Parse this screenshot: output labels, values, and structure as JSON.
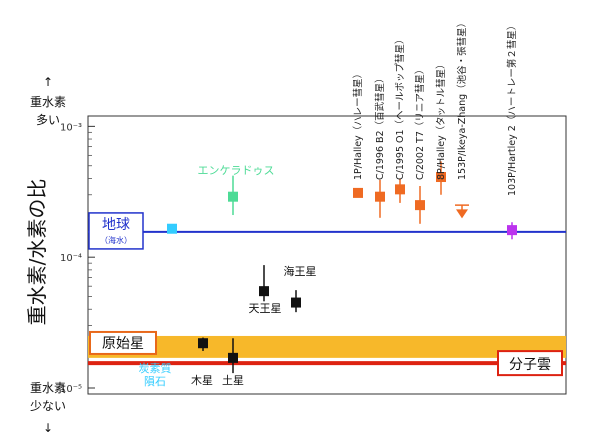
{
  "chart_data": {
    "type": "scatter",
    "title": "",
    "ylabel": "重水素/水素の比",
    "yscale": "log",
    "ylim": [
      9e-06,
      0.0012
    ],
    "yticks": [
      {
        "value": 0.001,
        "label": "10⁻³"
      },
      {
        "value": 0.0001,
        "label": "10⁻⁴"
      },
      {
        "value": 1e-05,
        "label": "10⁻⁵"
      }
    ],
    "top_annotation": {
      "arrow": "↑",
      "line1": "重水素",
      "line2": "多い"
    },
    "bottom_annotation": {
      "line1": "重水素",
      "line2": "少ない",
      "arrow": "↓"
    },
    "reference_lines": [
      {
        "name": "地球",
        "note": "（海水）",
        "value": 0.000156,
        "color": "#2233cc"
      },
      {
        "name": "分子雲",
        "value": 1.55e-05,
        "color": "#dd2211"
      }
    ],
    "bands": [
      {
        "name": "原始星",
        "ymin": 1.7e-05,
        "ymax": 2.5e-05,
        "color": "#f7b82a",
        "label_color": "#e8681a"
      }
    ],
    "groups": [
      {
        "name": "炭素質\n隕石",
        "color": "#33ccff",
        "points": [
          {
            "x": 1,
            "y": 0.000165,
            "err": null
          }
        ]
      },
      {
        "name": "エンケラドゥス",
        "color": "#4ddb96",
        "points": [
          {
            "x": 2,
            "y": 0.00029,
            "err": [
              0.00021,
              0.00042
            ]
          }
        ]
      },
      {
        "name": "木星",
        "color": "#111111",
        "points": [
          {
            "x": 3,
            "y": 2.2e-05,
            "err": [
              1.92e-05,
              2.43e-05
            ]
          }
        ]
      },
      {
        "name": "土星",
        "color": "#111111",
        "points": [
          {
            "x": 4,
            "y": 1.7e-05,
            "err": [
              1.3e-05,
              2.4e-05
            ]
          }
        ]
      },
      {
        "name": "天王星",
        "color": "#111111",
        "points": [
          {
            "x": 5,
            "y": 5.5e-05,
            "err": [
              4.6e-05,
              8.7e-05
            ]
          }
        ]
      },
      {
        "name": "海王星",
        "color": "#111111",
        "points": [
          {
            "x": 6,
            "y": 4.5e-05,
            "err": [
              3.8e-05,
              5.6e-05
            ]
          }
        ]
      }
    ],
    "comets": {
      "color": "#ef6a22",
      "items": [
        {
          "label": "1P/Halley（ハレー彗星）",
          "x": 7,
          "y": 0.00031,
          "err": [
            0.00029,
            0.00033
          ]
        },
        {
          "label": "C/1996 B2（百武彗星）",
          "x": 8,
          "y": 0.00029,
          "err": [
            0.0002,
            0.00039
          ]
        },
        {
          "label": "C/1995 O1（ヘールボップ彗星）",
          "x": 9,
          "y": 0.00033,
          "err": [
            0.00026,
            0.0004
          ]
        },
        {
          "label": "C/2002 T7（リニア彗星）",
          "x": 10,
          "y": 0.00025,
          "err": [
            0.00018,
            0.00035
          ]
        },
        {
          "label": "8P/Halley（タットル彗星）",
          "x": 11,
          "y": 0.00041,
          "err": [
            0.0003,
            0.00054
          ]
        },
        {
          "label": "153P/Ikeya-Zhang（池谷・張彗星）",
          "x": 12,
          "y": 0.00022,
          "upper_limit": 0.00025
        },
        {
          "label": "103P/Hartley 2（ハートレー第２彗星）",
          "x": 13,
          "y": 0.000161,
          "err": [
            0.000137,
            0.000185
          ],
          "color": "#bb33ee"
        }
      ]
    },
    "grid": false
  }
}
